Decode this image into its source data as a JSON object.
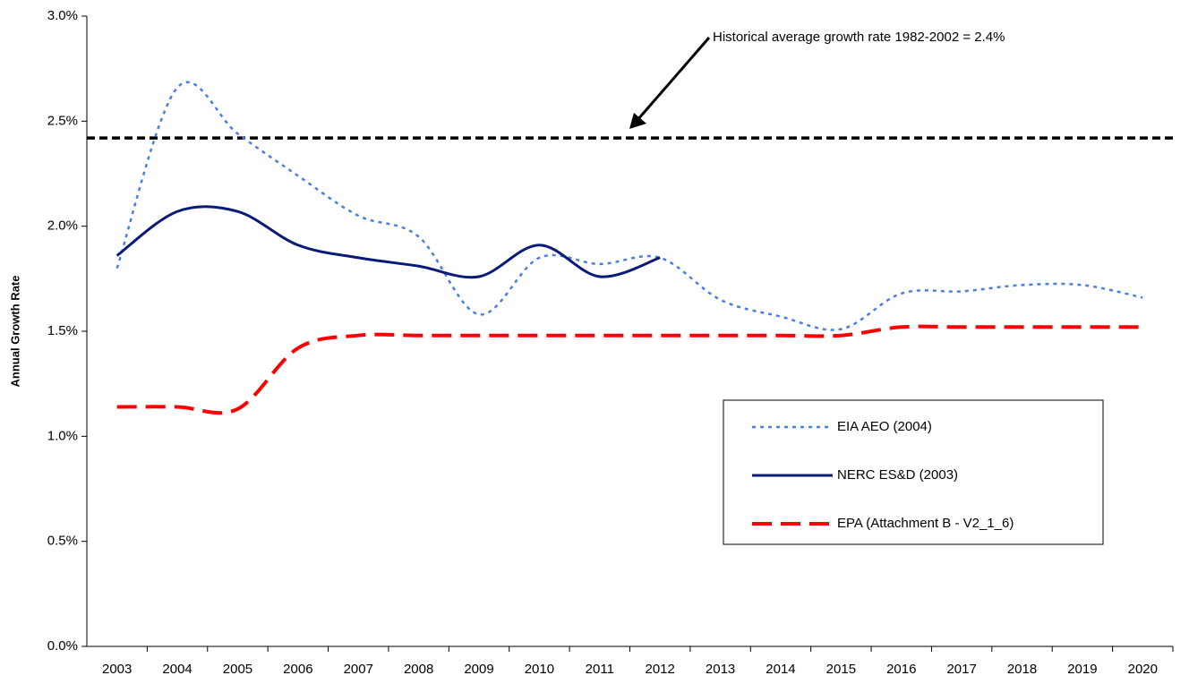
{
  "chart_data": {
    "type": "line",
    "y_label": "Annual Growth Rate",
    "categories": [
      "2003",
      "2004",
      "2005",
      "2006",
      "2007",
      "2008",
      "2009",
      "2010",
      "2011",
      "2012",
      "2013",
      "2014",
      "2015",
      "2016",
      "2017",
      "2018",
      "2019",
      "2020"
    ],
    "series": [
      {
        "name": "EIA AEO (2004)",
        "color": "#4a7fe0",
        "dash": "4,5",
        "width": 2.5,
        "values": [
          1.8,
          2.66,
          2.44,
          2.24,
          2.05,
          1.95,
          1.58,
          1.85,
          1.82,
          1.85,
          1.65,
          1.57,
          1.51,
          1.68,
          1.69,
          1.72,
          1.72,
          1.66
        ]
      },
      {
        "name": "NERC ES&D (2003)",
        "color": "#0a1a78",
        "dash": "",
        "width": 3,
        "values": [
          1.86,
          2.07,
          2.07,
          1.91,
          1.85,
          1.81,
          1.76,
          1.91,
          1.76,
          1.85,
          null,
          null,
          null,
          null,
          null,
          null,
          null,
          null
        ]
      },
      {
        "name": "EPA (Attachment B - V2_1_6)",
        "color": "#ff0000",
        "dash": "22,10",
        "width": 4,
        "values": [
          1.14,
          1.14,
          1.13,
          1.42,
          1.48,
          1.48,
          1.48,
          1.48,
          1.48,
          1.48,
          1.48,
          1.48,
          1.48,
          1.52,
          1.52,
          1.52,
          1.52,
          1.52
        ]
      }
    ],
    "reference_line": {
      "value": 2.42,
      "color": "#000000",
      "annotation": "Historical average growth rate 1982-2002 = 2.4%"
    },
    "ylim": [
      0,
      3.0
    ],
    "yticks": [
      {
        "value": 0,
        "label": "0.0%"
      },
      {
        "value": 0.5,
        "label": "0.5%"
      },
      {
        "value": 1.0,
        "label": "1.0%"
      },
      {
        "value": 1.5,
        "label": "1.5%"
      },
      {
        "value": 2.0,
        "label": "2.0%"
      },
      {
        "value": 2.5,
        "label": "2.5%"
      },
      {
        "value": 3.0,
        "label": "3.0%"
      }
    ],
    "grid": false,
    "legend": "right"
  }
}
